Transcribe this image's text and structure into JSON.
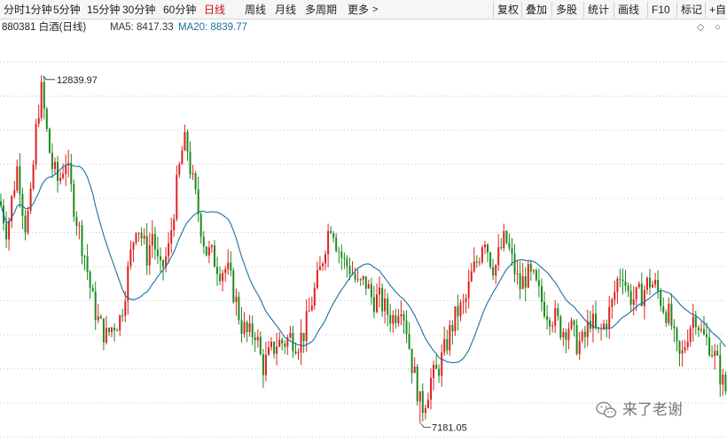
{
  "toolbar": {
    "periods": [
      "分时",
      "1分钟",
      "5分钟",
      "15分钟",
      "30分钟",
      "60分钟",
      "日线",
      "周线",
      "月线",
      "多周期",
      "更多"
    ],
    "active_period": "日线",
    "more_icon": "chevron-right-icon",
    "right_buttons": [
      "复权",
      "叠加",
      "多股",
      "统计",
      "画线",
      "F10",
      "标记",
      "+自"
    ]
  },
  "info": {
    "code_name": "880381 白酒(日线)",
    "ma5_label": "MA5: 8417.33",
    "ma20_label": "MA20: 8839.77",
    "ma5_color": "#333333",
    "ma20_color": "#1a6fa0",
    "diamond_icon": "diamond-icon"
  },
  "watermark": {
    "text": "来了老谢",
    "icon": "wechat-logo-icon"
  },
  "chart_data": {
    "type": "candlestick",
    "title": "880381 白酒(日线)",
    "up_color": "#e02020",
    "down_color": "#1e8a1e",
    "ma20_color": "#1a6fa0",
    "ylim": [
      6900,
      13500
    ],
    "grid": "horizontal-dotted",
    "max_label": "12839.97",
    "min_label": "7181.05",
    "anchors": [
      [
        0,
        10800
      ],
      [
        8,
        10300
      ],
      [
        14,
        10900
      ],
      [
        20,
        11400
      ],
      [
        28,
        10400
      ],
      [
        34,
        10700
      ],
      [
        42,
        12200
      ],
      [
        47,
        12600
      ],
      [
        52,
        12000
      ],
      [
        58,
        11400
      ],
      [
        66,
        11100
      ],
      [
        74,
        11500
      ],
      [
        80,
        11000
      ],
      [
        88,
        10400
      ],
      [
        96,
        9900
      ],
      [
        104,
        9200
      ],
      [
        112,
        8800
      ],
      [
        120,
        8600
      ],
      [
        128,
        8800
      ],
      [
        136,
        8900
      ],
      [
        146,
        9800
      ],
      [
        154,
        10500
      ],
      [
        160,
        10200
      ],
      [
        166,
        9900
      ],
      [
        172,
        10300
      ],
      [
        180,
        9600
      ],
      [
        190,
        10000
      ],
      [
        198,
        10900
      ],
      [
        205,
        11600
      ],
      [
        210,
        11800
      ],
      [
        216,
        11200
      ],
      [
        224,
        10600
      ],
      [
        232,
        10000
      ],
      [
        240,
        9900
      ],
      [
        248,
        9700
      ],
      [
        256,
        9700
      ],
      [
        264,
        9300
      ],
      [
        272,
        8800
      ],
      [
        280,
        8600
      ],
      [
        288,
        8700
      ],
      [
        296,
        8100
      ],
      [
        304,
        8300
      ],
      [
        312,
        8500
      ],
      [
        320,
        8500
      ],
      [
        328,
        8600
      ],
      [
        336,
        8500
      ],
      [
        344,
        8700
      ],
      [
        352,
        9200
      ],
      [
        360,
        9600
      ],
      [
        368,
        10200
      ],
      [
        374,
        10500
      ],
      [
        380,
        10100
      ],
      [
        388,
        9800
      ],
      [
        396,
        9700
      ],
      [
        404,
        9400
      ],
      [
        412,
        9500
      ],
      [
        420,
        9200
      ],
      [
        428,
        9200
      ],
      [
        436,
        9000
      ],
      [
        444,
        8900
      ],
      [
        452,
        9200
      ],
      [
        458,
        8800
      ],
      [
        464,
        8200
      ],
      [
        470,
        7800
      ],
      [
        475,
        7400
      ],
      [
        480,
        7600
      ],
      [
        486,
        7900
      ],
      [
        492,
        8000
      ],
      [
        500,
        8300
      ],
      [
        508,
        8700
      ],
      [
        516,
        9000
      ],
      [
        524,
        9100
      ],
      [
        532,
        9600
      ],
      [
        540,
        9900
      ],
      [
        546,
        10300
      ],
      [
        552,
        9900
      ],
      [
        558,
        9700
      ],
      [
        564,
        10000
      ],
      [
        570,
        10200
      ],
      [
        578,
        9800
      ],
      [
        586,
        9400
      ],
      [
        594,
        9600
      ],
      [
        602,
        9500
      ],
      [
        610,
        9200
      ],
      [
        618,
        9000
      ],
      [
        626,
        8900
      ],
      [
        634,
        8700
      ],
      [
        642,
        8800
      ],
      [
        650,
        8500
      ],
      [
        658,
        8500
      ],
      [
        666,
        8900
      ],
      [
        674,
        8600
      ],
      [
        682,
        8800
      ],
      [
        690,
        9100
      ],
      [
        696,
        9500
      ],
      [
        702,
        9700
      ],
      [
        708,
        9300
      ],
      [
        716,
        9200
      ],
      [
        724,
        9300
      ],
      [
        732,
        9500
      ],
      [
        740,
        9400
      ],
      [
        748,
        9100
      ],
      [
        756,
        8900
      ],
      [
        762,
        8400
      ],
      [
        768,
        8200
      ],
      [
        776,
        8700
      ],
      [
        784,
        9000
      ],
      [
        792,
        8600
      ],
      [
        800,
        8500
      ],
      [
        808,
        8200
      ],
      [
        814,
        7900
      ],
      [
        819,
        7700
      ]
    ]
  }
}
